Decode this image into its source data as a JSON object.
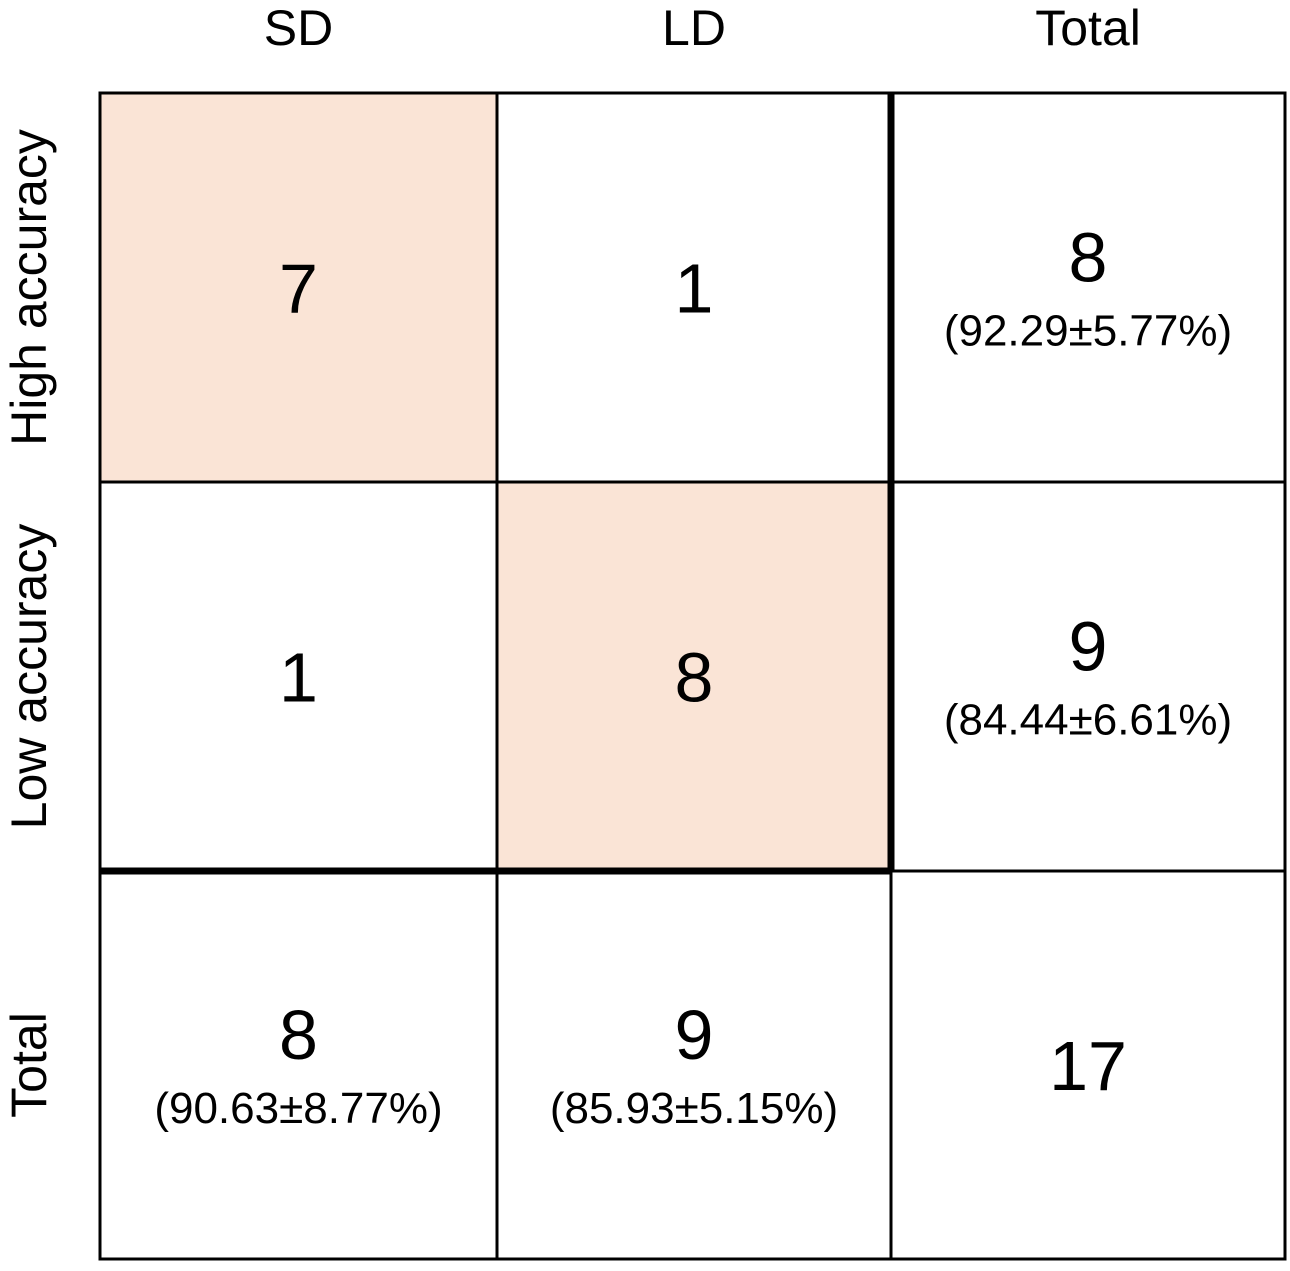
{
  "chart_data": {
    "type": "table",
    "columns": [
      "SD",
      "LD",
      "Total"
    ],
    "rows": [
      "High accuracy",
      "Low accuracy",
      "Total"
    ],
    "cells": [
      [
        {
          "count": "7",
          "sub": ""
        },
        {
          "count": "1",
          "sub": ""
        },
        {
          "count": "8",
          "sub": "(92.29±5.77%)"
        }
      ],
      [
        {
          "count": "1",
          "sub": ""
        },
        {
          "count": "8",
          "sub": ""
        },
        {
          "count": "9",
          "sub": "(84.44±6.61%)"
        }
      ],
      [
        {
          "count": "8",
          "sub": "(90.63±8.77%)"
        },
        {
          "count": "9",
          "sub": "(85.93±5.15%)"
        },
        {
          "count": "17",
          "sub": ""
        }
      ]
    ],
    "highlighted_cells": [
      [
        0,
        0
      ],
      [
        1,
        1
      ]
    ],
    "colors": {
      "highlight": "#fae4d6",
      "grid": "#000000",
      "background": "#ffffff"
    }
  }
}
